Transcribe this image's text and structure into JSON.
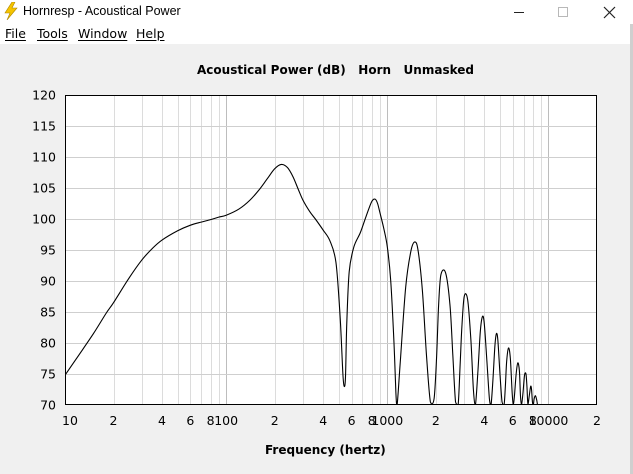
{
  "window": {
    "title": "Hornresp - Acoustical Power",
    "minimize_icon": "minimize-icon",
    "maximize_icon": "maximize-icon",
    "close_icon": "close-icon",
    "app_icon": "lightning-bolt-icon"
  },
  "menu": [
    {
      "label": "File"
    },
    {
      "label": "Tools"
    },
    {
      "label": "Window"
    },
    {
      "label": "Help"
    }
  ],
  "chart_data": {
    "type": "line",
    "title": "Acoustical Power (dB)   Horn   Unmasked",
    "xlabel": "Frequency (hertz)",
    "ylabel": "",
    "x_scale": "log",
    "xlim": [
      10,
      20000
    ],
    "ylim": [
      70,
      120
    ],
    "grid": true,
    "y_ticks": [
      120,
      115,
      110,
      105,
      100,
      95,
      90,
      85,
      80,
      75,
      70
    ],
    "x_tick_labels": [
      {
        "value": 10,
        "label": "10"
      },
      {
        "value": 20,
        "label": "2"
      },
      {
        "value": 40,
        "label": "4"
      },
      {
        "value": 60,
        "label": "6"
      },
      {
        "value": 80,
        "label": "8"
      },
      {
        "value": 100,
        "label": "100"
      },
      {
        "value": 200,
        "label": "2"
      },
      {
        "value": 400,
        "label": "4"
      },
      {
        "value": 600,
        "label": "6"
      },
      {
        "value": 800,
        "label": "8"
      },
      {
        "value": 1000,
        "label": "1000"
      },
      {
        "value": 2000,
        "label": "2"
      },
      {
        "value": 4000,
        "label": "4"
      },
      {
        "value": 6000,
        "label": "6"
      },
      {
        "value": 8000,
        "label": "8"
      },
      {
        "value": 10000,
        "label": "10000"
      },
      {
        "value": 20000,
        "label": "2"
      }
    ],
    "series": [
      {
        "color": "#000000",
        "x": [
          10,
          12,
          15,
          18,
          20,
          25,
          30,
          35,
          40,
          50,
          60,
          70,
          80,
          90,
          100,
          120,
          140,
          160,
          180,
          200,
          220,
          240,
          260,
          280,
          300,
          330,
          360,
          400,
          440,
          480,
          510,
          530,
          540,
          550,
          560,
          580,
          620,
          680,
          740,
          800,
          840,
          870,
          900,
          950,
          1000,
          1050,
          1100,
          1130,
          1150,
          1200,
          1300,
          1400,
          1480,
          1550,
          1650,
          1750,
          1850,
          1950,
          2020,
          2080,
          2150,
          2300,
          2450,
          2550,
          2650,
          2750,
          2830,
          2900,
          3000,
          3150,
          3300,
          3420,
          3520,
          3650,
          3780,
          3900,
          4000,
          4150,
          4300,
          4400,
          4520,
          4650,
          4750,
          4850,
          5000,
          5150,
          5300,
          5400,
          5500,
          5650,
          5800,
          5950,
          6050,
          6150,
          6300,
          6450,
          6600,
          6700,
          6800,
          6950,
          7100,
          7250,
          7350,
          7450,
          7600,
          7750,
          7850,
          7950,
          8050,
          8150,
          8300,
          8450,
          8550
        ],
        "y": [
          74.8,
          77.8,
          81.5,
          84.8,
          86.5,
          90.5,
          93.4,
          95.3,
          96.6,
          98.1,
          99.0,
          99.5,
          99.9,
          100.3,
          100.6,
          101.6,
          103.0,
          104.7,
          106.5,
          108.1,
          108.8,
          108.3,
          106.8,
          104.8,
          103.0,
          101.2,
          99.9,
          98.2,
          96.5,
          93.0,
          84.0,
          75.0,
          73.0,
          74.5,
          83.0,
          91.5,
          95.5,
          97.8,
          100.5,
          102.8,
          103.2,
          102.5,
          101.0,
          98.5,
          95.5,
          90.0,
          80.0,
          72.0,
          70.0,
          76.5,
          89.0,
          94.8,
          96.3,
          95.0,
          88.5,
          78.0,
          70.5,
          71.0,
          77.5,
          86.0,
          91.0,
          91.3,
          86.0,
          78.0,
          70.5,
          70.0,
          76.5,
          82.5,
          87.5,
          87.0,
          80.5,
          72.5,
          70.0,
          75.5,
          82.0,
          84.3,
          83.0,
          77.0,
          71.0,
          70.0,
          74.0,
          79.5,
          81.5,
          80.5,
          75.0,
          70.5,
          70.0,
          73.0,
          77.0,
          79.2,
          77.5,
          72.0,
          70.0,
          71.5,
          75.0,
          76.8,
          75.5,
          71.5,
          70.0,
          72.0,
          74.8,
          75.0,
          73.0,
          70.2,
          71.5,
          73.0,
          72.5,
          70.5,
          70.0,
          71.0,
          71.5,
          70.8,
          70.0
        ]
      }
    ]
  }
}
